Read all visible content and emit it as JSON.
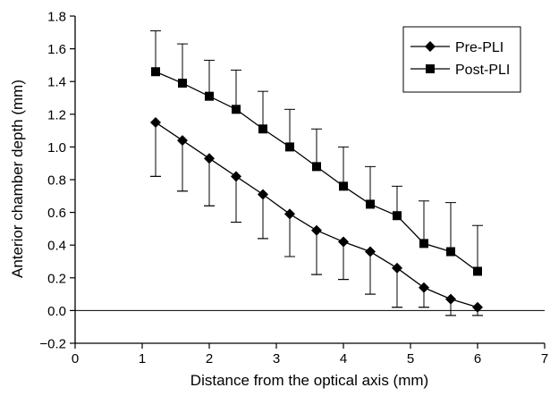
{
  "chart_data": {
    "type": "line",
    "title": "",
    "xlabel": "Distance from the optical axis (mm)",
    "ylabel": "Anterior chamber depth (mm)",
    "xlim": [
      0,
      7
    ],
    "ylim": [
      -0.2,
      1.8
    ],
    "x_ticks": [
      0,
      1,
      2,
      3,
      4,
      5,
      6,
      7
    ],
    "x_tick_labels": [
      "0",
      "1",
      "2",
      "3",
      "4",
      "5",
      "6",
      "7"
    ],
    "y_ticks": [
      -0.2,
      0.0,
      0.2,
      0.4,
      0.6,
      0.8,
      1.0,
      1.2,
      1.4,
      1.6,
      1.8
    ],
    "y_tick_labels": [
      "−0.2",
      "0.0",
      "0.2",
      "0.4",
      "0.6",
      "0.8",
      "1.0",
      "1.2",
      "1.4",
      "1.6",
      "1.8"
    ],
    "grid": false,
    "zero_line": true,
    "legend_position": "top-right",
    "x": [
      1.2,
      1.6,
      2.0,
      2.4,
      2.8,
      3.2,
      3.6,
      4.0,
      4.4,
      4.8,
      5.2,
      5.6,
      6.0
    ],
    "series": [
      {
        "name": "Pre-PLI",
        "marker": "diamond",
        "values": [
          1.15,
          1.04,
          0.93,
          0.82,
          0.71,
          0.59,
          0.49,
          0.42,
          0.36,
          0.26,
          0.14,
          0.07,
          0.02
        ],
        "error_upper": [
          0.82,
          0.73,
          0.64,
          0.54,
          0.44,
          0.33,
          0.22,
          0.19,
          0.1,
          0.02,
          0.02,
          -0.03,
          -0.03
        ],
        "error_lower": [
          0.82,
          0.73,
          0.64,
          0.54,
          0.44,
          0.33,
          0.22,
          0.19,
          0.1,
          0.02,
          0.02,
          -0.03,
          -0.03
        ]
      },
      {
        "name": "Post-PLI",
        "marker": "square",
        "values": [
          1.46,
          1.39,
          1.31,
          1.23,
          1.11,
          1.0,
          0.88,
          0.76,
          0.65,
          0.58,
          0.41,
          0.36,
          0.24
        ],
        "error_upper": [
          1.71,
          1.63,
          1.53,
          1.47,
          1.34,
          1.23,
          1.11,
          1.0,
          0.88,
          0.76,
          0.67,
          0.66,
          0.52
        ]
      }
    ]
  }
}
